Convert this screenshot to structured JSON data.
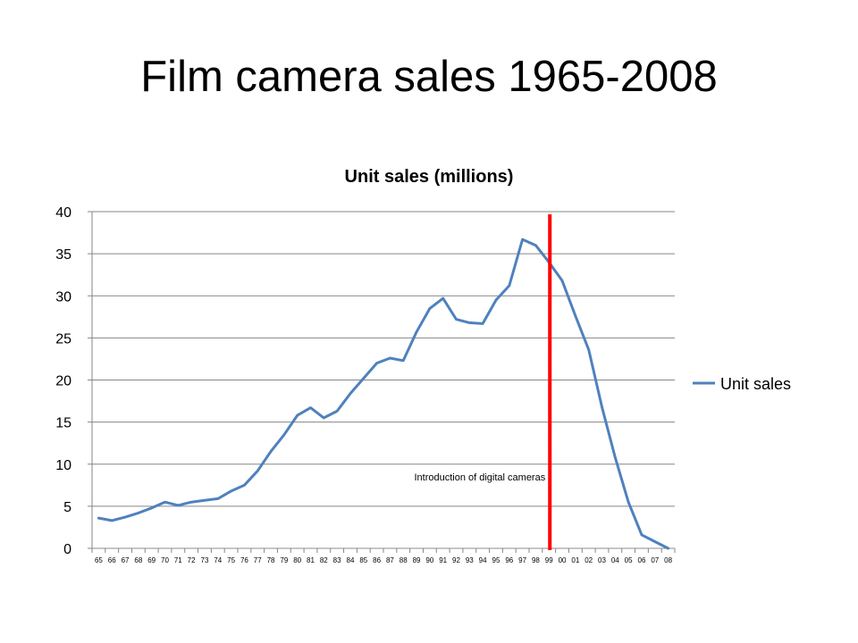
{
  "slide": {
    "title": "Film camera sales 1965-2008"
  },
  "chart_data": {
    "type": "line",
    "title": "Unit sales (millions)",
    "xlabel": "",
    "ylabel": "",
    "ylim": [
      0,
      40
    ],
    "yticks": [
      0,
      5,
      10,
      15,
      20,
      25,
      30,
      35,
      40
    ],
    "grid": true,
    "legend": "right",
    "categories": [
      "65",
      "66",
      "67",
      "68",
      "69",
      "70",
      "71",
      "72",
      "73",
      "74",
      "75",
      "76",
      "77",
      "78",
      "79",
      "80",
      "81",
      "82",
      "83",
      "84",
      "85",
      "86",
      "87",
      "88",
      "89",
      "90",
      "91",
      "92",
      "93",
      "94",
      "95",
      "96",
      "97",
      "98",
      "99",
      "00",
      "01",
      "02",
      "03",
      "04",
      "05",
      "06",
      "07",
      "08"
    ],
    "series": [
      {
        "name": "Unit sales",
        "color": "#4f81bd",
        "values": [
          3.6,
          3.3,
          3.7,
          4.2,
          4.8,
          5.5,
          5.1,
          5.5,
          5.7,
          5.9,
          6.8,
          7.5,
          9.2,
          11.5,
          13.5,
          15.8,
          16.7,
          15.5,
          16.3,
          18.4,
          20.2,
          22.0,
          22.6,
          22.3,
          25.7,
          28.5,
          29.7,
          27.2,
          26.8,
          26.7,
          29.5,
          31.2,
          36.7,
          36.0,
          34.0,
          31.8,
          27.6,
          23.6,
          16.8,
          10.8,
          5.5,
          1.6,
          0.8,
          0.0
        ]
      }
    ],
    "annotations": [
      {
        "text": "Introduction of digital cameras",
        "at_category": "99",
        "color": "#ff0000"
      }
    ]
  }
}
